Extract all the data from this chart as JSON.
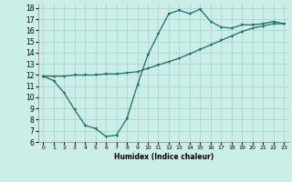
{
  "xlabel": "Humidex (Indice chaleur)",
  "bg_color": "#cceee8",
  "grid_color": "#b0d8d0",
  "line_color": "#1a6e6a",
  "xlim": [
    -0.5,
    23.5
  ],
  "ylim": [
    6,
    18.4
  ],
  "xticks": [
    0,
    1,
    2,
    3,
    4,
    5,
    6,
    7,
    8,
    9,
    10,
    11,
    12,
    13,
    14,
    15,
    16,
    17,
    18,
    19,
    20,
    21,
    22,
    23
  ],
  "yticks": [
    6,
    7,
    8,
    9,
    10,
    11,
    12,
    13,
    14,
    15,
    16,
    17,
    18
  ],
  "line1_x": [
    0,
    1,
    2,
    3,
    4,
    5,
    6,
    7,
    8,
    9,
    10,
    11,
    12,
    13,
    14,
    15,
    16,
    17,
    18,
    19,
    20,
    21,
    22,
    23
  ],
  "line1_y": [
    11.9,
    11.5,
    10.4,
    8.9,
    7.5,
    7.2,
    6.5,
    6.6,
    8.1,
    11.1,
    13.8,
    15.7,
    17.5,
    17.8,
    17.5,
    17.9,
    16.8,
    16.3,
    16.2,
    16.5,
    16.5,
    16.6,
    16.8,
    16.6
  ],
  "line2_x": [
    0,
    1,
    2,
    3,
    4,
    5,
    6,
    7,
    8,
    9,
    10,
    11,
    12,
    13,
    14,
    15,
    16,
    17,
    18,
    19,
    20,
    21,
    22,
    23
  ],
  "line2_y": [
    11.9,
    11.9,
    11.9,
    12.0,
    12.0,
    12.0,
    12.1,
    12.1,
    12.2,
    12.3,
    12.6,
    12.9,
    13.2,
    13.5,
    13.9,
    14.3,
    14.7,
    15.1,
    15.5,
    15.9,
    16.2,
    16.4,
    16.6,
    16.6
  ]
}
